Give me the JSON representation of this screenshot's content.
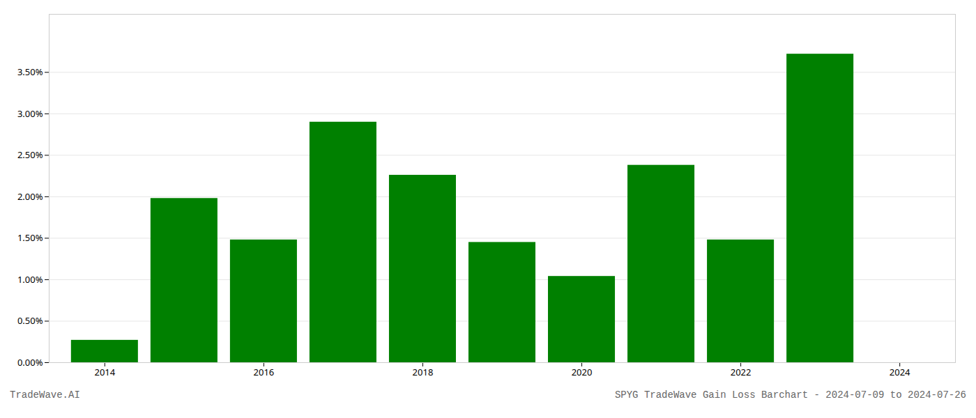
{
  "chart_data": {
    "type": "bar",
    "title": "SPYG TradeWave Gain Loss Barchart - 2024-07-09 to 2024-07-26",
    "annotations": [
      "TradeWave.AI"
    ],
    "x": [
      2014,
      2015,
      2016,
      2017,
      2018,
      2019,
      2020,
      2021,
      2022,
      2023
    ],
    "values": [
      0.0027,
      0.0198,
      0.0148,
      0.029,
      0.0226,
      0.0145,
      0.0104,
      0.0238,
      0.0148,
      0.0372
    ],
    "color": "#008000",
    "xlim": [
      2013.3,
      2024.7
    ],
    "xticks": [
      2014,
      2016,
      2018,
      2020,
      2022,
      2024
    ],
    "ylim": [
      0,
      0.042
    ],
    "yticks": [
      {
        "value": 0.0,
        "label": "0.00%"
      },
      {
        "value": 0.005,
        "label": "0.50%"
      },
      {
        "value": 0.01,
        "label": "1.00%"
      },
      {
        "value": 0.015,
        "label": "1.50%"
      },
      {
        "value": 0.02,
        "label": "2.00%"
      },
      {
        "value": 0.025,
        "label": "2.50%"
      },
      {
        "value": 0.03,
        "label": "3.00%"
      },
      {
        "value": 0.035,
        "label": "3.50%"
      }
    ],
    "grid": "y"
  }
}
